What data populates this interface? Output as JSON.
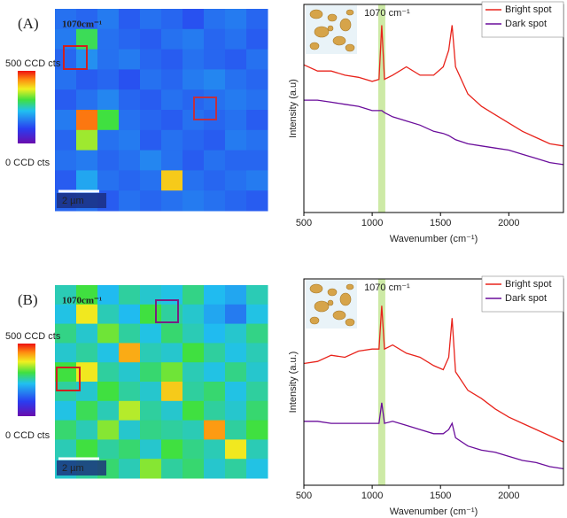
{
  "chart_data": [
    {
      "type": "heatmap",
      "panel_label": "(A)",
      "annotation": "1070cm⁻¹",
      "scale_bar": "2 µm",
      "zlim": [
        0,
        500
      ],
      "zticks": [
        {
          "value": 0,
          "label": "0 CCD cts"
        },
        {
          "value": 500,
          "label": "500 CCD cts"
        }
      ],
      "z": [
        [
          150,
          140,
          160,
          130,
          150,
          140,
          120,
          150,
          160,
          140
        ],
        [
          160,
          290,
          150,
          140,
          130,
          150,
          160,
          140,
          150,
          130
        ],
        [
          140,
          180,
          150,
          160,
          140,
          130,
          150,
          140,
          130,
          150
        ],
        [
          150,
          130,
          140,
          120,
          150,
          140,
          160,
          170,
          150,
          140
        ],
        [
          130,
          150,
          170,
          140,
          130,
          150,
          140,
          150,
          160,
          150
        ],
        [
          160,
          450,
          300,
          150,
          140,
          130,
          150,
          140,
          150,
          130
        ],
        [
          140,
          340,
          150,
          160,
          130,
          150,
          140,
          130,
          160,
          150
        ],
        [
          150,
          160,
          140,
          150,
          170,
          150,
          130,
          150,
          140,
          140
        ],
        [
          130,
          200,
          150,
          140,
          150,
          400,
          150,
          140,
          150,
          160
        ],
        [
          140,
          150,
          130,
          150,
          140,
          150,
          160,
          150,
          140,
          130
        ]
      ]
    },
    {
      "type": "line",
      "xlabel": "Wavenumber (cm⁻¹)",
      "ylabel": "Intensity (a.u)",
      "xlim": [
        500,
        2400
      ],
      "xticks": [
        500,
        1000,
        1500,
        2000
      ],
      "ylim": [
        0,
        100
      ],
      "legend": "upper right",
      "band": {
        "x": 1070,
        "label": "1070 cm⁻¹",
        "color": "#cdeaa6"
      },
      "x": [
        500,
        600,
        700,
        800,
        900,
        1000,
        1050,
        1070,
        1090,
        1150,
        1250,
        1350,
        1450,
        1520,
        1560,
        1585,
        1610,
        1700,
        1800,
        1900,
        2000,
        2100,
        2200,
        2300,
        2400
      ],
      "series": [
        {
          "name": "Bright spot",
          "color": "#e8231b",
          "values": [
            71,
            68,
            68,
            66,
            65,
            63,
            64,
            90,
            64,
            66,
            70,
            66,
            66,
            70,
            78,
            90,
            70,
            57,
            51,
            47,
            43,
            39,
            36,
            33,
            32
          ]
        },
        {
          "name": "Dark spot",
          "color": "#6a0d9b",
          "values": [
            54,
            54,
            53,
            52,
            51,
            49,
            49,
            49,
            48,
            46,
            44,
            42,
            39,
            38,
            37,
            36,
            35,
            33,
            32,
            31,
            30,
            28,
            26,
            24,
            23
          ]
        }
      ]
    },
    {
      "type": "heatmap",
      "panel_label": "(B)",
      "annotation": "1070cm⁻¹",
      "scale_bar": "2 µm",
      "zlim": [
        0,
        500
      ],
      "zticks": [
        {
          "value": 0,
          "label": "0 CCD cts"
        },
        {
          "value": 500,
          "label": "500 CCD cts"
        }
      ],
      "z": [
        [
          250,
          300,
          220,
          260,
          240,
          230,
          270,
          220,
          200,
          250
        ],
        [
          230,
          380,
          250,
          220,
          300,
          260,
          240,
          200,
          160,
          230
        ],
        [
          270,
          240,
          320,
          260,
          230,
          280,
          250,
          220,
          240,
          270
        ],
        [
          240,
          260,
          230,
          420,
          250,
          240,
          300,
          260,
          230,
          250
        ],
        [
          300,
          380,
          260,
          240,
          280,
          320,
          250,
          230,
          270,
          240
        ],
        [
          260,
          240,
          300,
          260,
          240,
          400,
          260,
          280,
          230,
          260
        ],
        [
          230,
          290,
          250,
          350,
          260,
          240,
          300,
          260,
          240,
          280
        ],
        [
          280,
          250,
          330,
          240,
          270,
          260,
          250,
          430,
          260,
          300
        ],
        [
          250,
          300,
          260,
          280,
          240,
          300,
          270,
          250,
          380,
          250
        ],
        [
          240,
          260,
          280,
          250,
          330,
          260,
          280,
          240,
          260,
          230
        ]
      ]
    },
    {
      "type": "line",
      "xlabel": "Wavenumber (cm⁻¹)",
      "ylabel": "Intensity (a.u.)",
      "xlim": [
        500,
        2400
      ],
      "xticks": [
        500,
        1000,
        1500,
        2000
      ],
      "ylim": [
        0,
        100
      ],
      "legend": "upper right",
      "band": {
        "x": 1070,
        "label": "1070 cm⁻¹",
        "color": "#cdeaa6"
      },
      "x": [
        500,
        600,
        700,
        800,
        900,
        1000,
        1050,
        1070,
        1090,
        1150,
        1250,
        1350,
        1450,
        1520,
        1560,
        1585,
        1610,
        1700,
        1800,
        1900,
        2000,
        2100,
        2200,
        2300,
        2400
      ],
      "series": [
        {
          "name": "Bright spot",
          "color": "#e8231b",
          "values": [
            59,
            60,
            63,
            62,
            65,
            66,
            66,
            87,
            66,
            68,
            64,
            62,
            58,
            56,
            62,
            81,
            55,
            46,
            42,
            37,
            33,
            30,
            27,
            24,
            21
          ]
        },
        {
          "name": "Dark spot",
          "color": "#6a0d9b",
          "values": [
            31,
            31,
            30,
            30,
            30,
            30,
            30,
            40,
            30,
            31,
            29,
            27,
            25,
            25,
            27,
            30,
            23,
            19,
            17,
            16,
            14,
            12,
            11,
            9,
            8
          ]
        }
      ]
    }
  ]
}
